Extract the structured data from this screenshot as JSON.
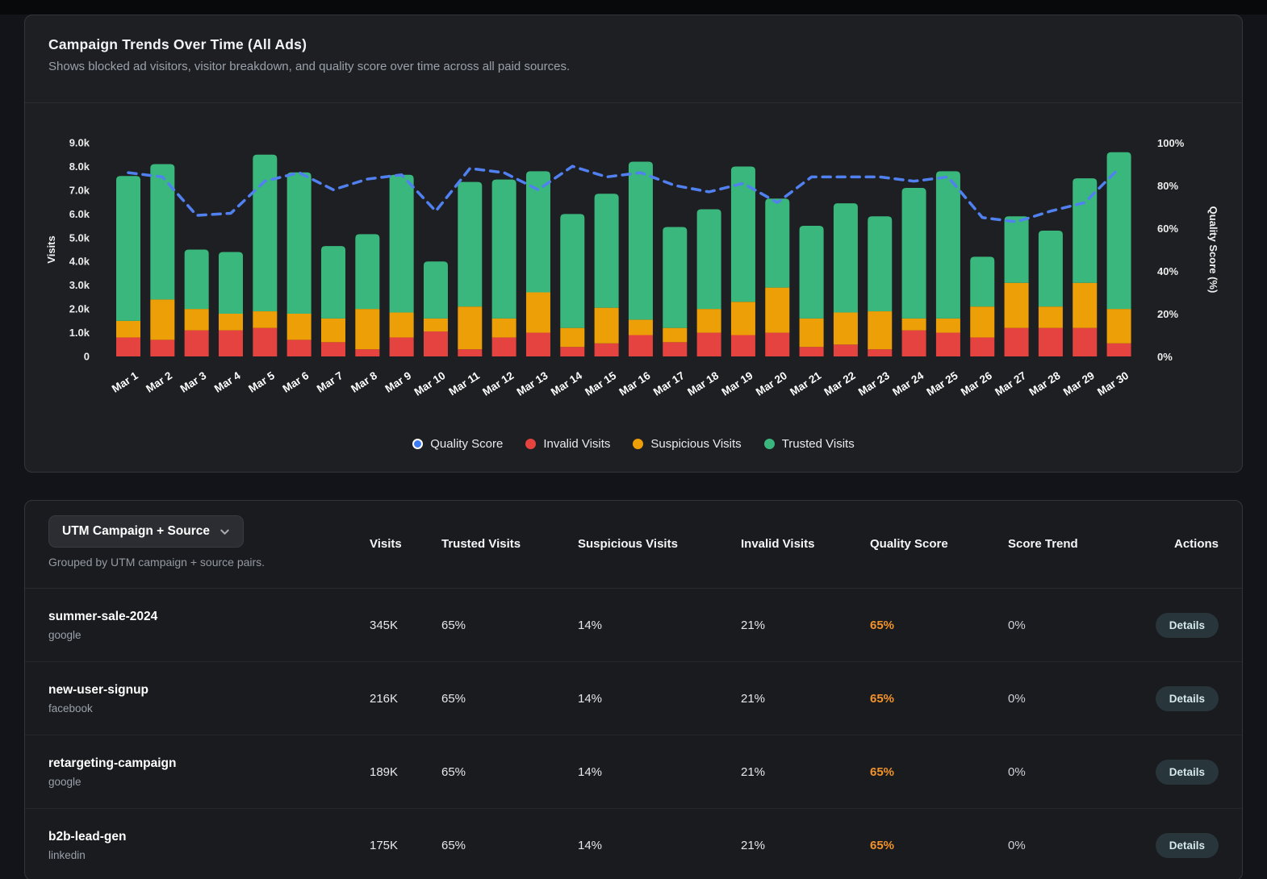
{
  "colors": {
    "invalid_red": "#e4433f",
    "suspicious_orange": "#ec9f06",
    "trusted_green": "#3ab77c",
    "quality_line_blue": "#5181f0",
    "quality_dot_blue": "#3d7bf5",
    "quality_text_orange": "#f2932b"
  },
  "chart_card": {
    "title": "Campaign Trends Over Time (All Ads)",
    "subtitle": "Shows blocked ad visitors, visitor breakdown, and quality score over time across all paid sources.",
    "y_left_label": "Visits",
    "y_right_label": "Quality Score (%)"
  },
  "chart_data": {
    "type": "stacked-bar+line",
    "title": "Campaign Trends Over Time (All Ads)",
    "categories": [
      "Mar 1",
      "Mar 2",
      "Mar 3",
      "Mar 4",
      "Mar 5",
      "Mar 6",
      "Mar 7",
      "Mar 8",
      "Mar 9",
      "Mar 10",
      "Mar 11",
      "Mar 12",
      "Mar 13",
      "Mar 14",
      "Mar 15",
      "Mar 16",
      "Mar 17",
      "Mar 18",
      "Mar 19",
      "Mar 20",
      "Mar 21",
      "Mar 22",
      "Mar 23",
      "Mar 24",
      "Mar 25",
      "Mar 26",
      "Mar 27",
      "Mar 28",
      "Mar 29",
      "Mar 30"
    ],
    "units": "thousands of visits",
    "series": [
      {
        "name": "Invalid Visits",
        "color": "#e4433f",
        "values": [
          0.8,
          0.7,
          1.1,
          1.1,
          1.2,
          0.7,
          0.6,
          0.3,
          0.8,
          1.05,
          0.3,
          0.8,
          1.0,
          0.4,
          0.55,
          0.9,
          0.6,
          1.0,
          0.9,
          1.0,
          0.4,
          0.5,
          0.3,
          1.1,
          1.0,
          0.8,
          1.2,
          1.2,
          1.2,
          0.55
        ]
      },
      {
        "name": "Suspicious Visits",
        "color": "#ec9f06",
        "values": [
          0.7,
          1.7,
          0.9,
          0.7,
          0.7,
          1.1,
          1.0,
          1.7,
          1.05,
          0.55,
          1.8,
          0.8,
          1.7,
          0.8,
          1.5,
          0.65,
          0.6,
          1.0,
          1.4,
          1.9,
          1.2,
          1.35,
          1.6,
          0.5,
          0.6,
          1.3,
          1.9,
          0.9,
          1.9,
          1.45
        ]
      },
      {
        "name": "Trusted Visits",
        "color": "#3ab77c",
        "values": [
          6.1,
          5.7,
          2.5,
          2.6,
          6.6,
          5.95,
          3.05,
          3.15,
          5.8,
          2.4,
          5.25,
          5.85,
          5.1,
          4.8,
          4.8,
          6.65,
          4.25,
          4.2,
          5.7,
          3.75,
          3.9,
          4.6,
          4.0,
          5.5,
          6.2,
          2.1,
          2.8,
          3.2,
          4.4,
          6.6
        ]
      }
    ],
    "line": {
      "name": "Quality Score",
      "color": "#5181f0",
      "axis": "right",
      "values": [
        86,
        84,
        66,
        67,
        82,
        86,
        78,
        83,
        85,
        68,
        88,
        86,
        78,
        89,
        84,
        86,
        80,
        77,
        81,
        72,
        84,
        84,
        84,
        82,
        84,
        65,
        63,
        68,
        72,
        88
      ]
    },
    "ylim_left": [
      0,
      9000
    ],
    "y_left_ticks": [
      "0",
      "1.0k",
      "2.0k",
      "3.0k",
      "4.0k",
      "5.0k",
      "6.0k",
      "7.0k",
      "8.0k",
      "9.0k"
    ],
    "ylim_right": [
      0,
      100
    ],
    "y_right_ticks": [
      "0%",
      "20%",
      "40%",
      "60%",
      "80%",
      "100%"
    ],
    "xlabel": "",
    "ylabel": "Visits",
    "ylabel_right": "Quality Score (%)",
    "grid": false,
    "legend_position": "bottom-center"
  },
  "table_card": {
    "group_button_label": "UTM Campaign + Source",
    "group_caption": "Grouped by UTM campaign + source pairs.",
    "columns": [
      "Visits",
      "Trusted Visits",
      "Suspicious Visits",
      "Invalid Visits",
      "Quality Score",
      "Score Trend",
      "Actions"
    ],
    "rows": [
      {
        "campaign": "summer-sale-2024",
        "source": "google",
        "visits": "345K",
        "trusted": "65%",
        "suspicious": "14%",
        "invalid": "21%",
        "quality": "65%",
        "trend": "0%",
        "action": "Details"
      },
      {
        "campaign": "new-user-signup",
        "source": "facebook",
        "visits": "216K",
        "trusted": "65%",
        "suspicious": "14%",
        "invalid": "21%",
        "quality": "65%",
        "trend": "0%",
        "action": "Details"
      },
      {
        "campaign": "retargeting-campaign",
        "source": "google",
        "visits": "189K",
        "trusted": "65%",
        "suspicious": "14%",
        "invalid": "21%",
        "quality": "65%",
        "trend": "0%",
        "action": "Details"
      },
      {
        "campaign": "b2b-lead-gen",
        "source": "linkedin",
        "visits": "175K",
        "trusted": "65%",
        "suspicious": "14%",
        "invalid": "21%",
        "quality": "65%",
        "trend": "0%",
        "action": "Details"
      }
    ]
  }
}
